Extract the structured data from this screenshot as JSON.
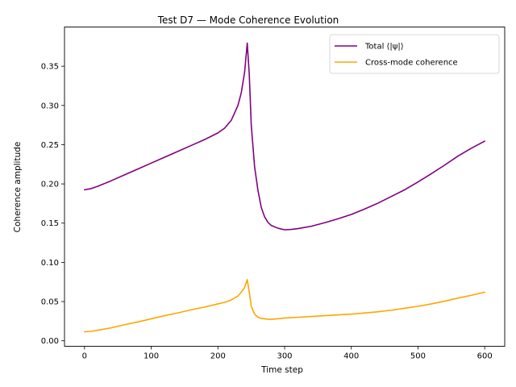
{
  "chart_data": {
    "type": "line",
    "title": "Test D7 — Mode Coherence Evolution",
    "xlabel": "Time step",
    "ylabel": "Coherence amplitude",
    "xlim": [
      -30,
      630
    ],
    "ylim": [
      -0.007,
      0.4
    ],
    "xticks": [
      0,
      100,
      200,
      300,
      400,
      500,
      600
    ],
    "yticks": [
      0.0,
      0.05,
      0.1,
      0.15,
      0.2,
      0.25,
      0.3,
      0.35
    ],
    "ytick_labels": [
      "0.00",
      "0.05",
      "0.10",
      "0.15",
      "0.20",
      "0.25",
      "0.30",
      "0.35"
    ],
    "grid": false,
    "legend_position": "top-right",
    "series": [
      {
        "name": "Total ⟨|ψ|⟩",
        "color": "#800080",
        "x": [
          0,
          10,
          20,
          40,
          60,
          80,
          100,
          120,
          140,
          160,
          180,
          200,
          210,
          220,
          230,
          235,
          240,
          244,
          247,
          250,
          255,
          260,
          265,
          270,
          275,
          280,
          290,
          300,
          310,
          320,
          340,
          360,
          380,
          400,
          420,
          440,
          460,
          480,
          500,
          520,
          540,
          560,
          580,
          600
        ],
        "y": [
          0.1925,
          0.194,
          0.197,
          0.204,
          0.2115,
          0.219,
          0.2265,
          0.234,
          0.2415,
          0.249,
          0.2565,
          0.265,
          0.271,
          0.281,
          0.3,
          0.316,
          0.342,
          0.3795,
          0.34,
          0.275,
          0.222,
          0.192,
          0.17,
          0.158,
          0.151,
          0.147,
          0.1435,
          0.1415,
          0.142,
          0.143,
          0.146,
          0.1505,
          0.1555,
          0.161,
          0.168,
          0.1755,
          0.184,
          0.1925,
          0.2025,
          0.213,
          0.224,
          0.2355,
          0.2455,
          0.2545
        ]
      },
      {
        "name": "Cross-mode coherence",
        "color": "#ffa500",
        "x": [
          0,
          10,
          20,
          40,
          60,
          80,
          100,
          120,
          140,
          160,
          180,
          200,
          210,
          220,
          230,
          235,
          240,
          244,
          247,
          250,
          255,
          260,
          265,
          270,
          275,
          280,
          290,
          300,
          320,
          340,
          360,
          380,
          400,
          420,
          440,
          460,
          480,
          500,
          520,
          540,
          560,
          580,
          600
        ],
        "y": [
          0.0115,
          0.012,
          0.0135,
          0.0165,
          0.0205,
          0.024,
          0.028,
          0.032,
          0.0355,
          0.0395,
          0.043,
          0.047,
          0.049,
          0.052,
          0.057,
          0.062,
          0.068,
          0.078,
          0.062,
          0.044,
          0.034,
          0.03,
          0.0285,
          0.028,
          0.0275,
          0.0275,
          0.028,
          0.029,
          0.03,
          0.031,
          0.032,
          0.033,
          0.034,
          0.0355,
          0.037,
          0.039,
          0.0415,
          0.044,
          0.047,
          0.0505,
          0.0545,
          0.058,
          0.062
        ]
      }
    ]
  }
}
